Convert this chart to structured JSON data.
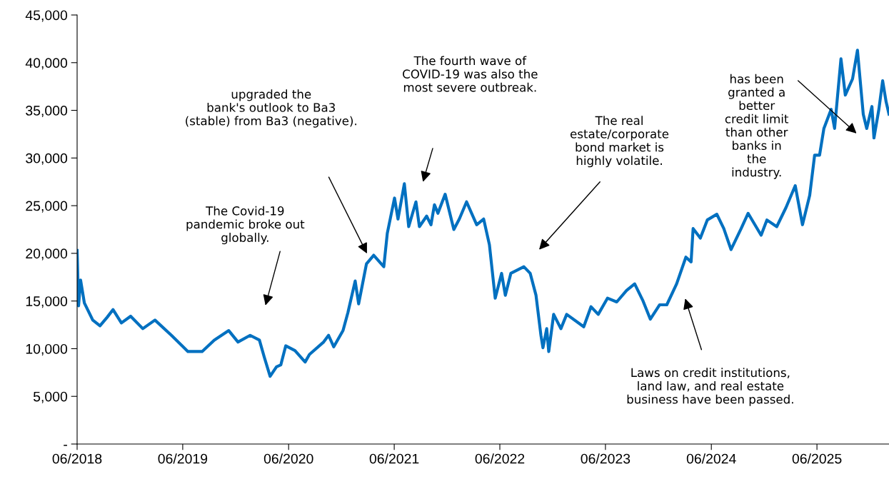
{
  "chart_data": {
    "type": "line",
    "x": [
      "2018-06-01",
      "2018-06-06",
      "2018-06-13",
      "2018-06-26",
      "2018-07-25",
      "2018-08-19",
      "2018-09-13",
      "2018-10-03",
      "2018-11-01",
      "2018-12-03",
      "2019-01-14",
      "2019-02-25",
      "2019-04-23",
      "2019-06-19",
      "2019-08-07",
      "2019-09-18",
      "2019-11-07",
      "2019-12-09",
      "2020-01-20",
      "2020-02-21",
      "2020-03-09",
      "2020-03-29",
      "2020-04-20",
      "2020-05-05",
      "2020-05-22",
      "2020-06-23",
      "2020-07-28",
      "2020-08-12",
      "2020-09-30",
      "2020-10-17",
      "2020-11-04",
      "2020-12-06",
      "2020-12-23",
      "2021-01-17",
      "2021-01-29",
      "2021-02-25",
      "2021-03-22",
      "2021-04-26",
      "2021-05-08",
      "2021-06-02",
      "2021-06-14",
      "2021-07-06",
      "2021-07-21",
      "2021-08-15",
      "2021-08-27",
      "2021-09-21",
      "2021-10-06",
      "2021-10-18",
      "2021-10-30",
      "2021-11-24",
      "2021-12-24",
      "2022-01-12",
      "2022-02-06",
      "2022-03-13",
      "2022-04-06",
      "2022-04-26",
      "2022-05-16",
      "2022-06-07",
      "2022-06-20",
      "2022-07-09",
      "2022-08-23",
      "2022-09-14",
      "2022-10-04",
      "2022-10-21",
      "2022-10-28",
      "2022-11-10",
      "2022-11-17",
      "2022-12-04",
      "2022-12-29",
      "2023-01-18",
      "2023-03-18",
      "2023-04-12",
      "2023-05-07",
      "2023-06-08",
      "2023-07-10",
      "2023-08-13",
      "2023-09-10",
      "2023-10-09",
      "2023-11-03",
      "2023-12-05",
      "2023-12-30",
      "2024-02-02",
      "2024-03-05",
      "2024-03-23",
      "2024-03-30",
      "2024-04-24",
      "2024-05-18",
      "2024-06-20",
      "2024-07-14",
      "2024-08-08",
      "2024-09-12",
      "2024-10-06",
      "2024-11-20",
      "2024-12-10",
      "2025-01-13",
      "2025-02-14",
      "2025-03-18",
      "2025-04-12",
      "2025-05-07",
      "2025-05-24",
      "2025-06-10",
      "2025-06-25",
      "2025-07-20",
      "2025-08-01",
      "2025-08-13",
      "2025-08-23",
      "2025-09-07",
      "2025-10-02",
      "2025-10-19",
      "2025-11-08",
      "2025-11-20",
      "2025-12-08",
      "2025-12-15",
      "2026-01-01",
      "2026-01-14",
      "2026-01-26",
      "2026-02-05"
    ],
    "series": [
      {
        "color": "#0070c0",
        "values": [
          20300,
          14500,
          17200,
          14800,
          13000,
          12400,
          13300,
          14100,
          12700,
          13400,
          12100,
          13000,
          11400,
          9700,
          9700,
          10900,
          11900,
          10700,
          11400,
          10900,
          9100,
          7100,
          8100,
          8300,
          10300,
          9800,
          8600,
          9400,
          10700,
          11400,
          10200,
          11900,
          13800,
          17100,
          14700,
          18900,
          19800,
          18600,
          22100,
          25800,
          23600,
          27300,
          22800,
          25400,
          22800,
          23900,
          23000,
          25100,
          24200,
          26200,
          22500,
          23600,
          25400,
          23000,
          23600,
          20900,
          15300,
          17900,
          15600,
          17900,
          18600,
          17900,
          15600,
          11400,
          10100,
          12100,
          9700,
          13600,
          12100,
          13600,
          12300,
          14400,
          13600,
          15300,
          14900,
          16100,
          16800,
          15000,
          13100,
          14600,
          14600,
          16800,
          19600,
          19100,
          22600,
          21600,
          23500,
          24100,
          22600,
          20400,
          22600,
          24200,
          21900,
          23500,
          22800,
          24800,
          27100,
          23000,
          26100,
          30300,
          30300,
          33100,
          35100,
          33100,
          37100,
          40400,
          36600,
          38300,
          41300,
          34600,
          33100,
          35400,
          32100,
          35100,
          38100,
          35900,
          34600
        ]
      }
    ],
    "xlim": [
      "2018-06-01",
      "2026-02-05"
    ],
    "xticks": [
      {
        "value": "2018-06-01",
        "label": "06/2018"
      },
      {
        "value": "2019-06-01",
        "label": "06/2019"
      },
      {
        "value": "2020-06-01",
        "label": "06/2020"
      },
      {
        "value": "2021-06-01",
        "label": "06/2021"
      },
      {
        "value": "2022-06-01",
        "label": "06/2022"
      },
      {
        "value": "2023-06-01",
        "label": "06/2023"
      },
      {
        "value": "2024-06-01",
        "label": "06/2024"
      },
      {
        "value": "2025-06-01",
        "label": "06/2025"
      }
    ],
    "ylim": [
      0,
      45000
    ],
    "yticks": [
      {
        "value": 0,
        "label": "-"
      },
      {
        "value": 5000,
        "label": "5,000"
      },
      {
        "value": 10000,
        "label": "10,000"
      },
      {
        "value": 15000,
        "label": "15,000"
      },
      {
        "value": 20000,
        "label": "20,000"
      },
      {
        "value": 25000,
        "label": "25,000"
      },
      {
        "value": 30000,
        "label": "30,000"
      },
      {
        "value": 35000,
        "label": "35,000"
      },
      {
        "value": 40000,
        "label": "40,000"
      },
      {
        "value": 45000,
        "label": "45,000"
      }
    ],
    "grid": false,
    "annotations": [
      "The Covid-19\npandemic broke out\nglobally.",
      "upgraded the\nbank's outlook to Ba3\n(stable) from Ba3 (negative).",
      "The fourth wave of\nCOVID-19 was also the\nmost severe outbreak.",
      "The real\nestate/corporate\nbond market is\nhighly volatile.",
      "Laws on credit institutions,\nland law, and real estate\nbusiness have been passed.",
      "has been\ngranted a\nbetter\ncredit limit\nthan other\nbanks in\nthe\nindustry."
    ]
  }
}
